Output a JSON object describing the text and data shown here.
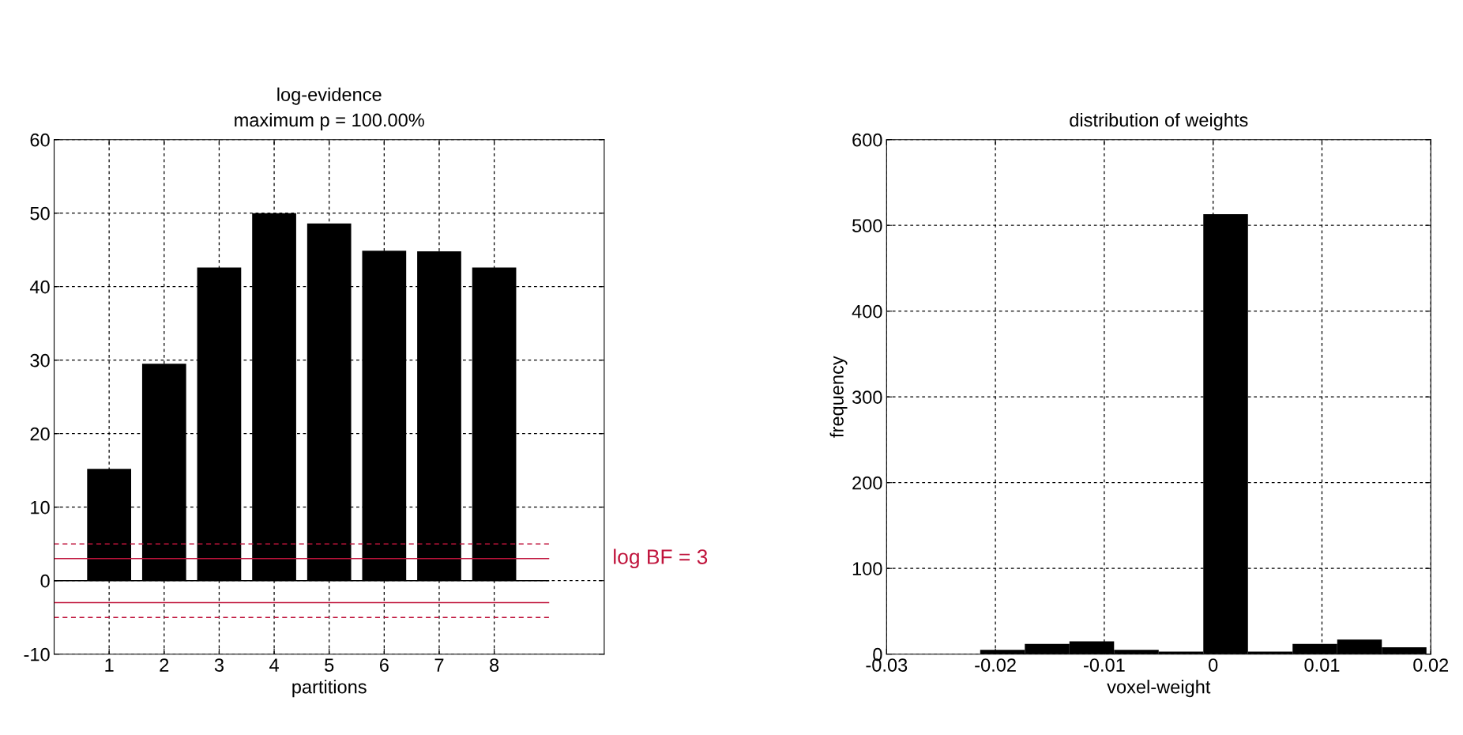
{
  "chart_data": [
    {
      "type": "bar",
      "title": "log-evidence",
      "subtitle": "maximum p = 100.00%",
      "xlabel": "partitions",
      "x": [
        1,
        2,
        3,
        4,
        5,
        6,
        7,
        8
      ],
      "values": [
        15.2,
        29.5,
        42.6,
        50.0,
        48.6,
        44.9,
        44.8,
        42.6
      ],
      "color": "#000000",
      "xlim": [
        0,
        10
      ],
      "xticks": [
        1,
        2,
        3,
        4,
        5,
        6,
        7,
        8
      ],
      "ylim": [
        -10,
        60
      ],
      "yticks": [
        -10,
        0,
        10,
        20,
        30,
        40,
        50,
        60
      ],
      "grid": true,
      "ref_lines": [
        {
          "axis": "y",
          "value": 0,
          "color": "#000000",
          "line_style": "solid"
        },
        {
          "axis": "y",
          "value": 3,
          "label": "log BF = 3",
          "color": "#c0143c",
          "line_style": "solid"
        },
        {
          "axis": "y",
          "value": 5,
          "color": "#c0143c",
          "line_style": "dashed"
        },
        {
          "axis": "y",
          "value": -3,
          "color": "#c0143c",
          "line_style": "solid"
        },
        {
          "axis": "y",
          "value": -5,
          "color": "#c0143c",
          "line_style": "dashed"
        }
      ]
    },
    {
      "type": "histogram",
      "title": "distribution of weights",
      "xlabel": "voxel-weight",
      "ylabel": "frequency",
      "bins": [
        -0.0214,
        -0.0173,
        -0.0132,
        -0.0091,
        -0.005,
        -0.0009,
        0.0032,
        0.0073,
        0.0114,
        0.0155,
        0.0196
      ],
      "values": [
        5,
        12,
        15,
        5,
        3,
        513,
        3,
        12,
        17,
        8
      ],
      "color": "#000000",
      "xlim": [
        -0.03,
        0.02
      ],
      "xticks": [
        -0.03,
        -0.02,
        -0.01,
        0,
        0.01,
        0.02
      ],
      "ylim": [
        0,
        600
      ],
      "yticks": [
        0,
        100,
        200,
        300,
        400,
        500,
        600
      ],
      "grid": true
    }
  ]
}
